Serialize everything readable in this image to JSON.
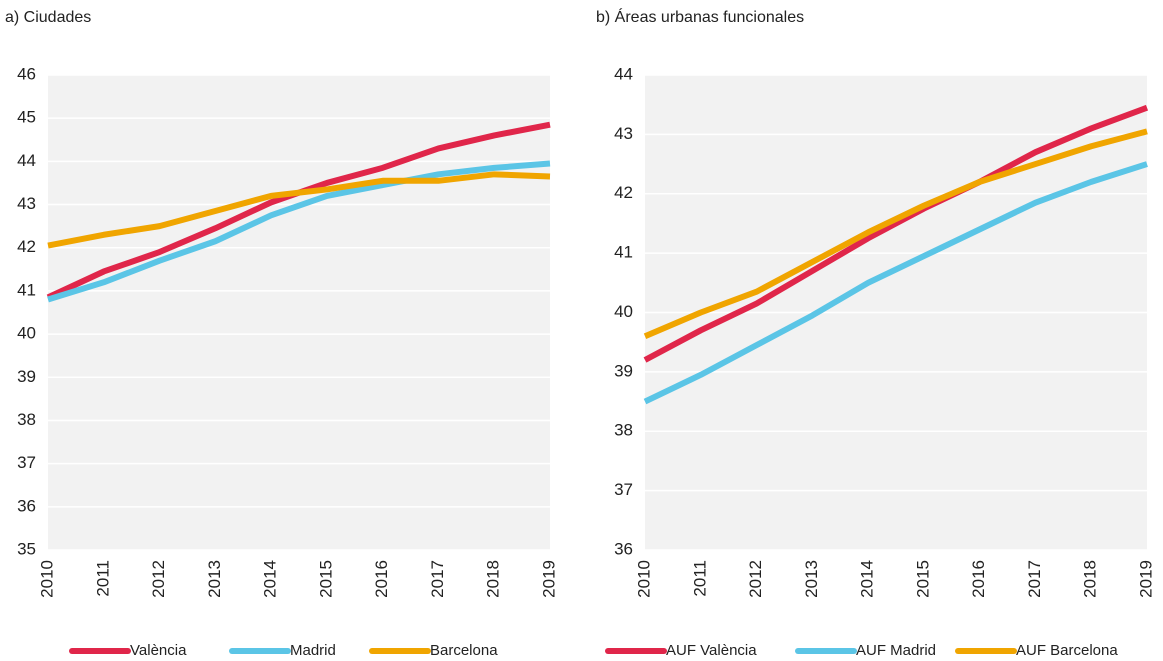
{
  "chart_data": [
    {
      "type": "line",
      "title": "a) Ciudades",
      "categories": [
        "2010",
        "2011",
        "2012",
        "2013",
        "2014",
        "2015",
        "2016",
        "2017",
        "2018",
        "2019"
      ],
      "series": [
        {
          "name": "València",
          "color": "#e0264a",
          "values": [
            40.85,
            41.45,
            41.9,
            42.45,
            43.05,
            43.5,
            43.85,
            44.3,
            44.6,
            44.85
          ]
        },
        {
          "name": "Madrid",
          "color": "#5bc5e6",
          "values": [
            40.8,
            41.2,
            41.7,
            42.15,
            42.75,
            43.2,
            43.45,
            43.7,
            43.85,
            43.95
          ]
        },
        {
          "name": "Barcelona",
          "color": "#f0a500",
          "values": [
            42.05,
            42.3,
            42.5,
            42.85,
            43.2,
            43.35,
            43.55,
            43.55,
            43.7,
            43.65
          ]
        }
      ],
      "ylim": [
        35,
        46
      ],
      "yticks": [
        35,
        36,
        37,
        38,
        39,
        40,
        41,
        42,
        43,
        44,
        45,
        46
      ],
      "grid": true
    },
    {
      "type": "line",
      "title": "b) Áreas urbanas funcionales",
      "categories": [
        "2010",
        "2011",
        "2012",
        "2013",
        "2014",
        "2015",
        "2016",
        "2017",
        "2018",
        "2019"
      ],
      "series": [
        {
          "name": "AUF València",
          "color": "#e0264a",
          "values": [
            39.2,
            39.7,
            40.15,
            40.7,
            41.25,
            41.75,
            42.2,
            42.7,
            43.1,
            43.45
          ]
        },
        {
          "name": "AUF Madrid",
          "color": "#5bc5e6",
          "values": [
            38.5,
            38.95,
            39.45,
            39.95,
            40.5,
            40.95,
            41.4,
            41.85,
            42.2,
            42.5
          ]
        },
        {
          "name": "AUF Barcelona",
          "color": "#f0a500",
          "values": [
            39.6,
            40.0,
            40.35,
            40.85,
            41.35,
            41.8,
            42.2,
            42.5,
            42.8,
            43.05
          ]
        }
      ],
      "ylim": [
        36,
        44
      ],
      "yticks": [
        36,
        37,
        38,
        39,
        40,
        41,
        42,
        43,
        44
      ],
      "grid": true
    }
  ]
}
